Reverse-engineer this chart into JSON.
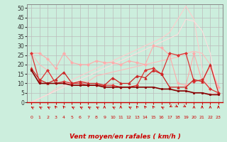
{
  "xlabel": "Vent moyen/en rafales ( km/h )",
  "bg_color": "#cceedd",
  "grid_color": "#bbbbbb",
  "x": [
    0,
    1,
    2,
    3,
    4,
    5,
    6,
    7,
    8,
    9,
    10,
    11,
    12,
    13,
    14,
    15,
    16,
    17,
    18,
    19,
    20,
    21,
    22,
    23
  ],
  "ylim": [
    0,
    52
  ],
  "yticks": [
    0,
    5,
    10,
    15,
    20,
    25,
    30,
    35,
    40,
    45,
    50
  ],
  "series": [
    {
      "data": [
        26,
        26,
        23,
        18,
        26,
        21,
        20,
        20,
        22,
        21,
        21,
        20,
        22,
        21,
        20,
        30,
        29,
        25,
        10,
        9,
        26,
        11,
        19,
        8
      ],
      "color": "#ffaaaa",
      "lw": 0.8,
      "marker": "D",
      "ms": 2.0,
      "alpha": 1.0,
      "zorder": 2
    },
    {
      "data": [
        26,
        20,
        17,
        10,
        10,
        10,
        11,
        11,
        14,
        15,
        16,
        17,
        18,
        19,
        20,
        21,
        22,
        23,
        24,
        26,
        27,
        26,
        20,
        8
      ],
      "color": "#ffbbbb",
      "lw": 0.8,
      "marker": null,
      "ms": 0,
      "alpha": 1.0,
      "zorder": 1
    },
    {
      "data": [
        0,
        2,
        4,
        7,
        9,
        12,
        14,
        16,
        18,
        20,
        22,
        24,
        26,
        28,
        30,
        32,
        34,
        37,
        44,
        51,
        44,
        18,
        5,
        4
      ],
      "color": "#ffcccc",
      "lw": 0.8,
      "marker": null,
      "ms": 0,
      "alpha": 1.0,
      "zorder": 1
    },
    {
      "data": [
        0,
        2,
        4,
        6,
        8,
        10,
        12,
        14,
        16,
        18,
        20,
        22,
        24,
        26,
        28,
        30,
        32,
        34,
        36,
        44,
        43,
        38,
        26,
        4
      ],
      "color": "#ffdddd",
      "lw": 0.8,
      "marker": null,
      "ms": 0,
      "alpha": 1.0,
      "zorder": 1
    },
    {
      "data": [
        26,
        11,
        17,
        10,
        11,
        10,
        10,
        9,
        9,
        9,
        9,
        8,
        8,
        9,
        17,
        18,
        15,
        26,
        25,
        26,
        11,
        12,
        7,
        5
      ],
      "color": "#dd3333",
      "lw": 0.9,
      "marker": "D",
      "ms": 2.0,
      "alpha": 1.0,
      "zorder": 3
    },
    {
      "data": [
        18,
        12,
        10,
        12,
        16,
        10,
        11,
        10,
        10,
        9,
        13,
        10,
        10,
        14,
        13,
        17,
        15,
        8,
        8,
        8,
        12,
        11,
        20,
        5
      ],
      "color": "#cc2222",
      "lw": 0.9,
      "marker": "^",
      "ms": 2.5,
      "alpha": 1.0,
      "zorder": 3
    },
    {
      "data": [
        17,
        10,
        10,
        10,
        10,
        9,
        9,
        9,
        9,
        8,
        8,
        8,
        8,
        8,
        8,
        8,
        7,
        7,
        6,
        6,
        5,
        5,
        4,
        4
      ],
      "color": "#880000",
      "lw": 1.2,
      "marker": "s",
      "ms": 1.8,
      "alpha": 1.0,
      "zorder": 4
    }
  ],
  "arrow_color": "#cc0000",
  "wind_dirs": [
    225,
    225,
    225,
    202,
    202,
    225,
    225,
    225,
    225,
    180,
    225,
    180,
    225,
    202,
    202,
    202,
    225,
    315,
    45,
    45,
    180,
    180,
    180,
    180
  ]
}
